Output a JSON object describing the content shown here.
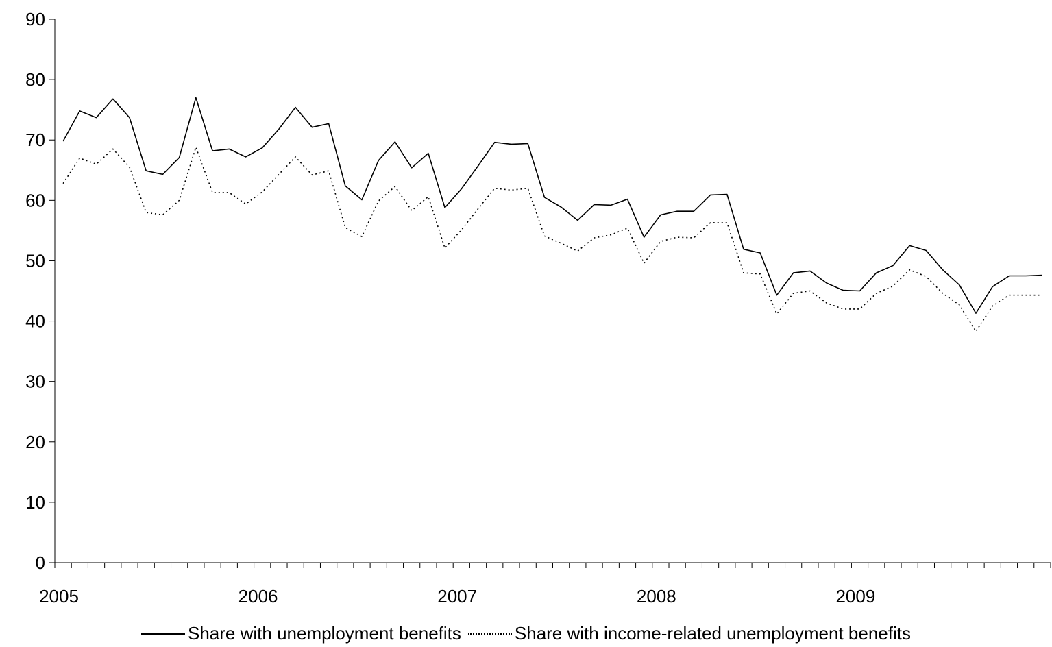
{
  "chart_data": {
    "type": "line",
    "title": "",
    "xlabel": "",
    "ylabel": "",
    "ylim": [
      0,
      90
    ],
    "yticks": [
      "0",
      "10",
      "20",
      "30",
      "40",
      "50",
      "60",
      "70",
      "80",
      "90"
    ],
    "xtick_labels": [
      "2005",
      "2006",
      "2007",
      "2008",
      "2009"
    ],
    "x_start": "2005-01",
    "x_frequency": "monthly",
    "grid": false,
    "legend_position": "bottom",
    "series": [
      {
        "name": "Share with unemployment benefits",
        "style": "solid",
        "color": "#000000",
        "values": [
          69.8,
          74.8,
          73.7,
          76.8,
          73.7,
          64.9,
          64.3,
          67.1,
          77.0,
          68.2,
          68.5,
          67.2,
          68.7,
          71.8,
          75.4,
          72.1,
          72.7,
          62.4,
          60.1,
          66.6,
          69.7,
          65.4,
          67.8,
          58.8,
          61.9,
          65.7,
          69.6,
          69.3,
          69.4,
          60.5,
          58.9,
          56.7,
          59.3,
          59.2,
          60.2,
          53.9,
          57.6,
          58.2,
          58.2,
          60.9,
          61.0,
          51.9,
          51.3,
          44.3,
          48.0,
          48.3,
          46.3,
          45.1,
          45.0,
          48.0,
          49.2,
          52.5,
          51.7,
          48.5,
          46.0,
          41.3,
          45.7,
          47.5,
          47.5,
          47.6
        ]
      },
      {
        "name": "Share with income-related unemployment benefits",
        "style": "dotted",
        "color": "#000000",
        "values": [
          62.8,
          67.0,
          66.0,
          68.5,
          65.5,
          58.0,
          57.6,
          60.0,
          68.8,
          61.3,
          61.3,
          59.4,
          61.4,
          64.3,
          67.2,
          64.2,
          64.9,
          55.5,
          54.0,
          59.9,
          62.3,
          58.3,
          60.6,
          52.1,
          55.1,
          58.6,
          62.0,
          61.7,
          62.0,
          54.1,
          52.9,
          51.6,
          53.8,
          54.3,
          55.4,
          49.6,
          53.2,
          53.9,
          53.8,
          56.3,
          56.3,
          48.0,
          47.8,
          41.2,
          44.6,
          45.0,
          43.0,
          42.0,
          42.0,
          44.6,
          45.8,
          48.5,
          47.4,
          44.6,
          42.7,
          38.3,
          42.5,
          44.3,
          44.3,
          44.3
        ]
      }
    ]
  }
}
